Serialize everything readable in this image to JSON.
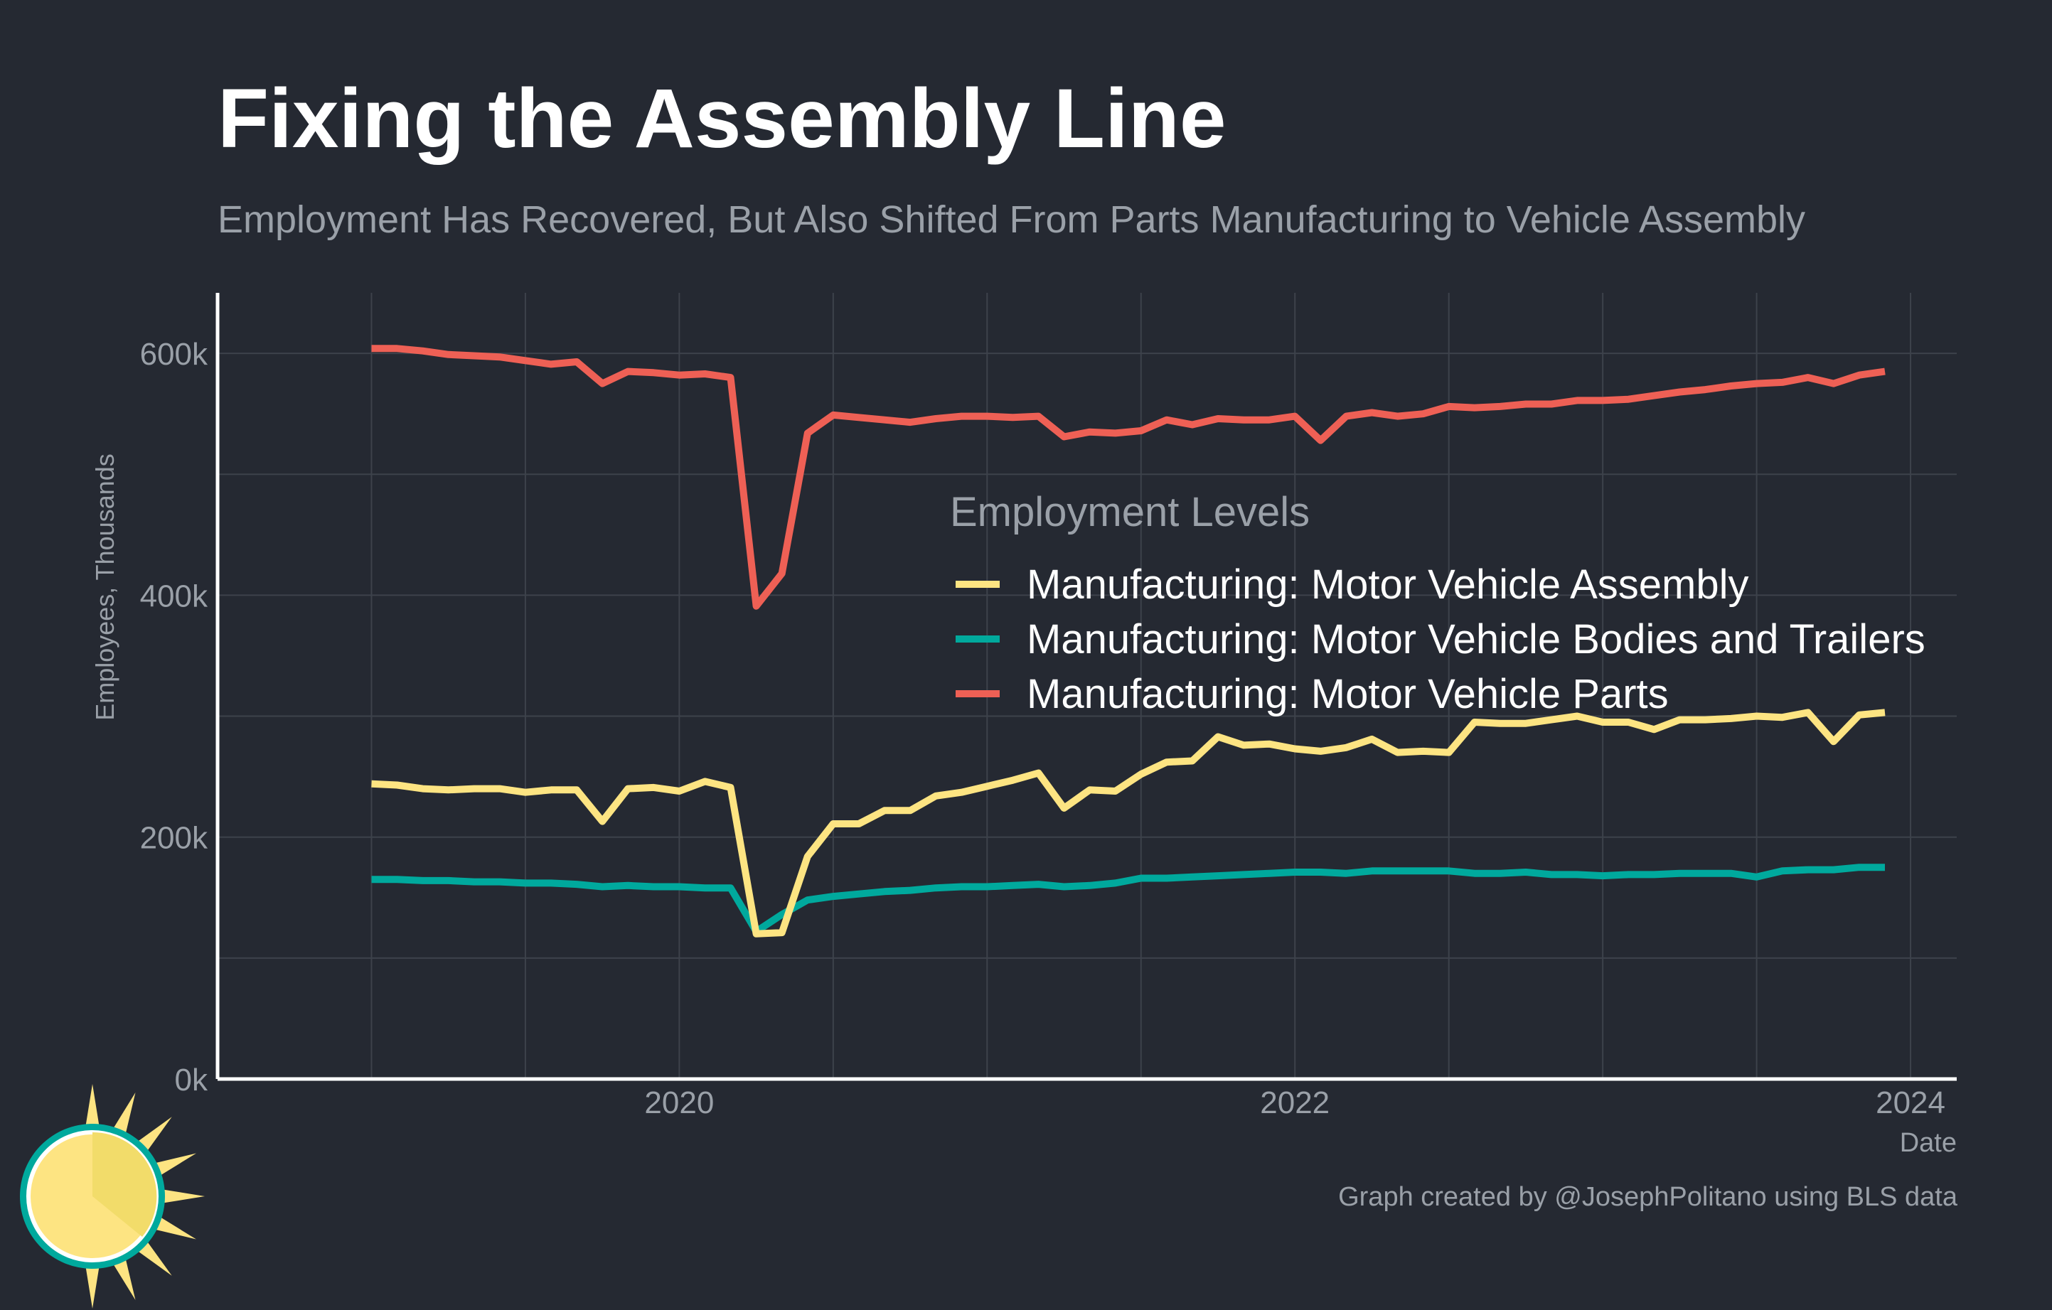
{
  "title": "Fixing the Assembly Line",
  "subtitle": "Employment Has Recovered, But Also Shifted From Parts Manufacturing to Vehicle Assembly",
  "caption": "Graph created by @JosephPolitano using BLS data",
  "colors": {
    "background": "#252932",
    "grid": "#3d424b",
    "axis": "#ffffff",
    "assembly": "#fde482",
    "bodies": "#00a99d",
    "parts": "#ee6055"
  },
  "chart_data": {
    "type": "line",
    "xlabel": "Date",
    "ylabel": "Employees, Thousands",
    "x_ticks": [
      {
        "value": 2020,
        "label": "2020"
      },
      {
        "value": 2022,
        "label": "2022"
      },
      {
        "value": 2024,
        "label": "2024"
      }
    ],
    "y_ticks": [
      {
        "value": 0,
        "label": "0k"
      },
      {
        "value": 200,
        "label": "200k"
      },
      {
        "value": 400,
        "label": "400k"
      },
      {
        "value": 600,
        "label": "600k"
      }
    ],
    "xlim": [
      2018.5,
      2024.15
    ],
    "ylim": [
      0,
      650
    ],
    "grid": true,
    "legend": {
      "title": "Employment Levels",
      "position": "center-right"
    },
    "x_start": "2019-01",
    "x_step": "1 month",
    "series": [
      {
        "name": "Manufacturing: Motor Vehicle Assembly",
        "color": "#fde482",
        "values": [
          244,
          243,
          240,
          239,
          240,
          240,
          237,
          239,
          239,
          213,
          240,
          241,
          238,
          246,
          241,
          120,
          121,
          184,
          211,
          211,
          222,
          222,
          234,
          237,
          242,
          247,
          253,
          224,
          239,
          238,
          252,
          262,
          263,
          283,
          276,
          277,
          273,
          271,
          274,
          281,
          270,
          271,
          270,
          295,
          294,
          294,
          297,
          300,
          295,
          295,
          289,
          297,
          297,
          298,
          300,
          299,
          303,
          279,
          301,
          303
        ]
      },
      {
        "name": "Manufacturing: Motor Vehicle Bodies and Trailers",
        "color": "#00a99d",
        "values": [
          165,
          165,
          164,
          164,
          163,
          163,
          162,
          162,
          161,
          159,
          160,
          159,
          159,
          158,
          158,
          122,
          136,
          148,
          151,
          153,
          155,
          156,
          158,
          159,
          159,
          160,
          161,
          159,
          160,
          162,
          166,
          166,
          167,
          168,
          169,
          170,
          171,
          171,
          170,
          172,
          172,
          172,
          172,
          170,
          170,
          171,
          169,
          169,
          168,
          169,
          169,
          170,
          170,
          170,
          167,
          172,
          173,
          173,
          175,
          175
        ]
      },
      {
        "name": "Manufacturing: Motor Vehicle Parts",
        "color": "#ee6055",
        "values": [
          604,
          604,
          602,
          599,
          598,
          597,
          594,
          591,
          593,
          575,
          585,
          584,
          582,
          583,
          580,
          391,
          418,
          534,
          549,
          547,
          545,
          543,
          546,
          548,
          548,
          547,
          548,
          531,
          535,
          534,
          536,
          545,
          541,
          546,
          545,
          545,
          548,
          528,
          548,
          551,
          548,
          550,
          556,
          555,
          556,
          558,
          558,
          561,
          561,
          562,
          565,
          568,
          570,
          573,
          575,
          576,
          580,
          575,
          582,
          585
        ]
      }
    ]
  }
}
